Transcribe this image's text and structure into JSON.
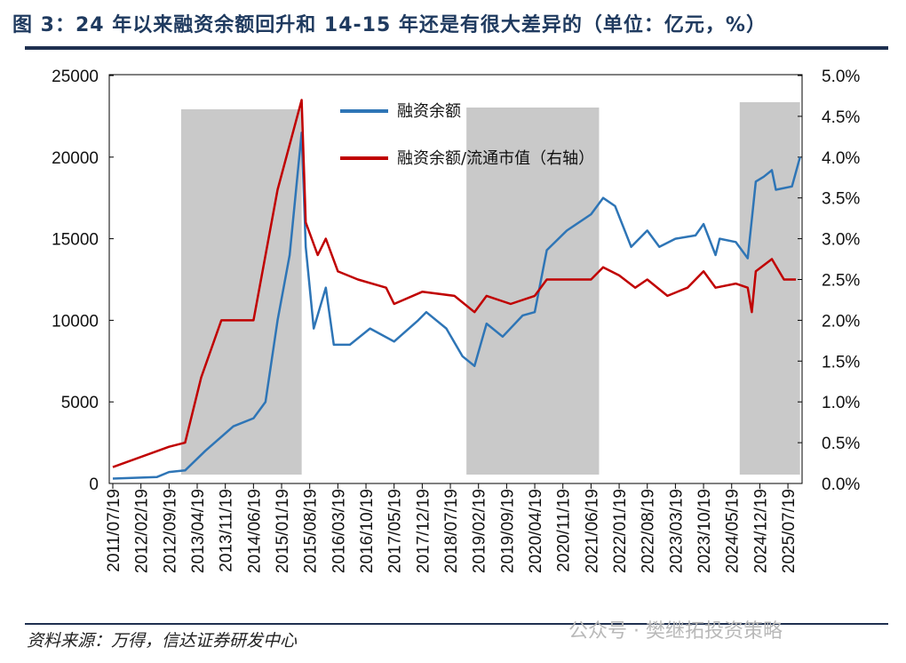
{
  "title": "图 3：24 年以来融资余额回升和 14-15 年还是有很大差异的（单位：亿元，%）",
  "footer": {
    "source": "资料来源：万得，信达证券研发中心",
    "watermark": "公众号 · 樊继拓投资策略"
  },
  "chart_data": {
    "type": "line",
    "title": "24 年以来融资余额回升和 14-15 年还是有很大差异的",
    "xticks": [
      "2011/07/19",
      "2012/02/19",
      "2012/09/19",
      "2013/04/19",
      "2013/11/19",
      "2014/06/19",
      "2015/01/19",
      "2015/08/19",
      "2016/03/19",
      "2016/10/19",
      "2017/05/19",
      "2017/12/19",
      "2018/07/19",
      "2019/02/19",
      "2019/09/19",
      "2020/04/19",
      "2020/11/19",
      "2021/06/19",
      "2022/01/19",
      "2022/08/19",
      "2023/03/19",
      "2023/10/19",
      "2024/05/19",
      "2024/12/19",
      "2025/07/19"
    ],
    "yleft": {
      "ylim": [
        0,
        25000
      ],
      "ticks": [
        "0",
        "5000",
        "10000",
        "15000",
        "20000",
        "25000"
      ]
    },
    "yright": {
      "ylim": [
        0,
        5
      ],
      "ticks": [
        "0.0%",
        "0.5%",
        "1.0%",
        "1.5%",
        "2.0%",
        "2.5%",
        "3.0%",
        "3.5%",
        "4.0%",
        "4.5%",
        "5.0%"
      ]
    },
    "shaded_periods": [
      [
        "2012/12",
        "2015/06"
      ],
      [
        "2018/11",
        "2021/08"
      ],
      [
        "2024/07",
        "2025/10"
      ]
    ],
    "series": [
      {
        "name": "融资余额",
        "axis": "left",
        "color": "#2e75b6",
        "points": [
          [
            "2011/07",
            300
          ],
          [
            "2012/06",
            400
          ],
          [
            "2012/09",
            700
          ],
          [
            "2013/01",
            800
          ],
          [
            "2013/06",
            2000
          ],
          [
            "2014/01",
            3500
          ],
          [
            "2014/06",
            4000
          ],
          [
            "2014/09",
            5000
          ],
          [
            "2014/12",
            10000
          ],
          [
            "2015/03",
            14000
          ],
          [
            "2015/06",
            21500
          ],
          [
            "2015/07",
            14500
          ],
          [
            "2015/09",
            9500
          ],
          [
            "2015/12",
            12000
          ],
          [
            "2016/02",
            8500
          ],
          [
            "2016/06",
            8500
          ],
          [
            "2016/11",
            9500
          ],
          [
            "2017/05",
            8700
          ],
          [
            "2017/11",
            10000
          ],
          [
            "2018/01",
            10500
          ],
          [
            "2018/06",
            9500
          ],
          [
            "2018/10",
            7800
          ],
          [
            "2019/01",
            7200
          ],
          [
            "2019/04",
            9800
          ],
          [
            "2019/08",
            9000
          ],
          [
            "2020/01",
            10300
          ],
          [
            "2020/04",
            10500
          ],
          [
            "2020/07",
            14300
          ],
          [
            "2020/12",
            15500
          ],
          [
            "2021/06",
            16500
          ],
          [
            "2021/09",
            17500
          ],
          [
            "2021/12",
            17000
          ],
          [
            "2022/04",
            14500
          ],
          [
            "2022/08",
            15500
          ],
          [
            "2022/11",
            14500
          ],
          [
            "2023/03",
            15000
          ],
          [
            "2023/08",
            15200
          ],
          [
            "2023/10",
            15900
          ],
          [
            "2024/01",
            14000
          ],
          [
            "2024/02",
            15000
          ],
          [
            "2024/06",
            14800
          ],
          [
            "2024/09",
            13800
          ],
          [
            "2024/11",
            18500
          ],
          [
            "2025/01",
            18800
          ],
          [
            "2025/03",
            19200
          ],
          [
            "2025/04",
            18000
          ],
          [
            "2025/08",
            18200
          ],
          [
            "2025/10",
            20000
          ]
        ]
      },
      {
        "name": "融资余额/流通市值（右轴）",
        "axis": "right",
        "color": "#c00000",
        "points": [
          [
            "2011/07",
            0.2
          ],
          [
            "2012/09",
            0.45
          ],
          [
            "2013/01",
            0.5
          ],
          [
            "2013/05",
            1.3
          ],
          [
            "2013/10",
            2.0
          ],
          [
            "2014/06",
            2.0
          ],
          [
            "2014/12",
            3.6
          ],
          [
            "2015/06",
            4.7
          ],
          [
            "2015/07",
            3.2
          ],
          [
            "2015/10",
            2.8
          ],
          [
            "2015/12",
            3.0
          ],
          [
            "2016/03",
            2.6
          ],
          [
            "2016/08",
            2.5
          ],
          [
            "2017/03",
            2.4
          ],
          [
            "2017/05",
            2.2
          ],
          [
            "2017/12",
            2.35
          ],
          [
            "2018/08",
            2.3
          ],
          [
            "2019/01",
            2.1
          ],
          [
            "2019/04",
            2.3
          ],
          [
            "2019/10",
            2.2
          ],
          [
            "2020/04",
            2.3
          ],
          [
            "2020/07",
            2.5
          ],
          [
            "2021/06",
            2.5
          ],
          [
            "2021/09",
            2.65
          ],
          [
            "2022/01",
            2.55
          ],
          [
            "2022/05",
            2.4
          ],
          [
            "2022/08",
            2.5
          ],
          [
            "2023/01",
            2.3
          ],
          [
            "2023/06",
            2.4
          ],
          [
            "2023/10",
            2.6
          ],
          [
            "2024/01",
            2.4
          ],
          [
            "2024/06",
            2.45
          ],
          [
            "2024/09",
            2.4
          ],
          [
            "2024/10",
            2.1
          ],
          [
            "2024/11",
            2.6
          ],
          [
            "2025/03",
            2.75
          ],
          [
            "2025/06",
            2.5
          ],
          [
            "2025/09",
            2.5
          ]
        ]
      }
    ]
  }
}
